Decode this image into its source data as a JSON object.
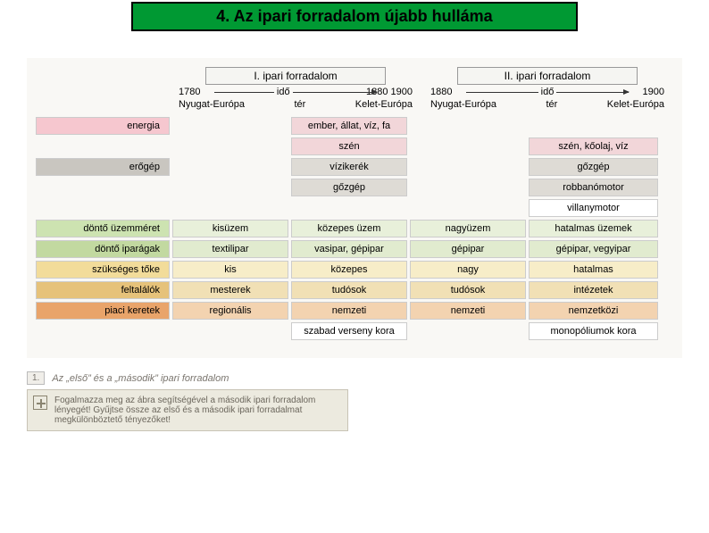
{
  "title": "4. Az ipari forradalom újabb hulláma",
  "headers": [
    "I. ipari forradalom",
    "II. ipari forradalom"
  ],
  "timeline": {
    "left": {
      "start": "1780",
      "mid": "idő",
      "end": "1880   1900"
    },
    "right": {
      "start": "1880",
      "mid": "idő",
      "end": "1900"
    }
  },
  "regions": {
    "left": {
      "a": "Nyugat-Európa",
      "mid": "tér",
      "b": "Kelet-Európa"
    },
    "right": {
      "a": "Nyugat-Európa",
      "mid": "tér",
      "b": "Kelet-Európa"
    }
  },
  "rows": [
    {
      "label": "energia",
      "c1": "",
      "c2": "ember, állat, víz, fa",
      "c3": "",
      "c4": "",
      "label_bg": "#f6c7cf",
      "bg": "#f2d6d9"
    },
    {
      "label": "",
      "c1": "",
      "c2": "szén",
      "c3": "",
      "c4": "szén, kőolaj, víz",
      "label_bg": "transparent",
      "bg": "#f2d6d9"
    },
    {
      "label": "erőgép",
      "c1": "",
      "c2": "vízikerék",
      "c3": "",
      "c4": "gőzgép",
      "label_bg": "#c9c6c0",
      "bg": "#dedbd5"
    },
    {
      "label": "",
      "c1": "",
      "c2": "gőzgép",
      "c3": "",
      "c4": "robbanómotor",
      "label_bg": "transparent",
      "bg": "#dedbd5"
    },
    {
      "label": "",
      "c1": "",
      "c2": "",
      "c3": "",
      "c4": "villanymotor",
      "label_bg": "transparent",
      "bg": "#ffffff"
    },
    {
      "label": "döntő üzemméret",
      "c1": "kisüzem",
      "c2": "közepes üzem",
      "c3": "nagyüzem",
      "c4": "hatalmas üzemek",
      "label_bg": "#cde3b1",
      "bg": "#e8f0da"
    },
    {
      "label": "döntő iparágak",
      "c1": "textilipar",
      "c2": "vasipar, gépipar",
      "c3": "gépipar",
      "c4": "gépipar, vegyipar",
      "label_bg": "#c2d9a0",
      "bg": "#e1ebcf"
    },
    {
      "label": "szükséges tőke",
      "c1": "kis",
      "c2": "közepes",
      "c3": "nagy",
      "c4": "hatalmas",
      "label_bg": "#f2dc9a",
      "bg": "#f7edc8"
    },
    {
      "label": "feltalálók",
      "c1": "mesterek",
      "c2": "tudósok",
      "c3": "tudósok",
      "c4": "intézetek",
      "label_bg": "#e6c27a",
      "bg": "#f1e0b5"
    },
    {
      "label": "piaci keretek",
      "c1": "regionális",
      "c2": "nemzeti",
      "c3": "nemzeti",
      "c4": "nemzetközi",
      "label_bg": "#e9a46a",
      "bg": "#f3d3b0"
    },
    {
      "label": "",
      "c1": "",
      "c2": "szabad verseny kora",
      "c3": "",
      "c4": "monopóliumok kora",
      "label_bg": "transparent",
      "bg": "#ffffff"
    }
  ],
  "caption_num": "1.",
  "caption": "Az „első” és a „második” ipari forradalom",
  "task": "Fogalmazza meg az ábra segítségével a második ipari forradalom lényegét! Gyűjtse össze az első és a második ipari forradalmat megkülönböztető tényezőket!"
}
